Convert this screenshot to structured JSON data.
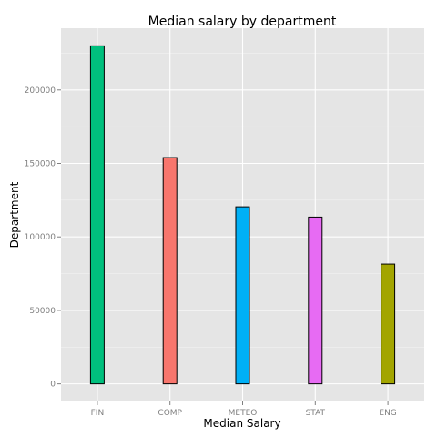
{
  "chart_data": {
    "type": "bar",
    "title": "Median salary by department",
    "xlabel": "Median Salary",
    "ylabel": "Department",
    "categories": [
      "FIN",
      "COMP",
      "METEO",
      "STAT",
      "ENG"
    ],
    "values": [
      230000,
      154000,
      120500,
      113500,
      81500
    ],
    "bar_colors": [
      "#00BF7D",
      "#F8766D",
      "#00B0F6",
      "#E76BF3",
      "#A3A500"
    ],
    "ylim": [
      -12000,
      242000
    ],
    "yticks": [
      0,
      50000,
      100000,
      150000,
      200000
    ],
    "ytick_labels": [
      "0",
      "50000",
      "100000",
      "150000",
      "200000"
    ],
    "grid": true,
    "legend": "none",
    "panel_color": "#E5E5E5",
    "grid_color": "#FFFFFF"
  }
}
